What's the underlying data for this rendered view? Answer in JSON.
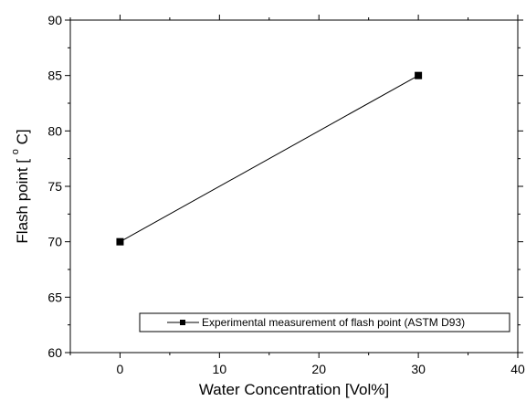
{
  "chart_data": {
    "type": "line",
    "xlabel": "Water Concentration [Vol%]",
    "ylabel_main": "Flash point [",
    "ylabel_degree": "o",
    "ylabel_unit": "C]",
    "xlim": [
      -5,
      40
    ],
    "ylim": [
      60,
      90
    ],
    "xticks": [
      0,
      10,
      20,
      30,
      40
    ],
    "xtick_labels": [
      "0",
      "10",
      "20",
      "30",
      "40"
    ],
    "yticks": [
      60,
      65,
      70,
      75,
      80,
      85,
      90
    ],
    "ytick_labels": [
      "60",
      "65",
      "70",
      "75",
      "80",
      "85",
      "90"
    ],
    "series": [
      {
        "name": "Experimental measurement of flash point (ASTM D93)",
        "marker": "square",
        "color": "#000000",
        "x": [
          0,
          30
        ],
        "y": [
          70,
          85
        ]
      }
    ],
    "legend_placement": "bottom-right",
    "grid": false
  }
}
